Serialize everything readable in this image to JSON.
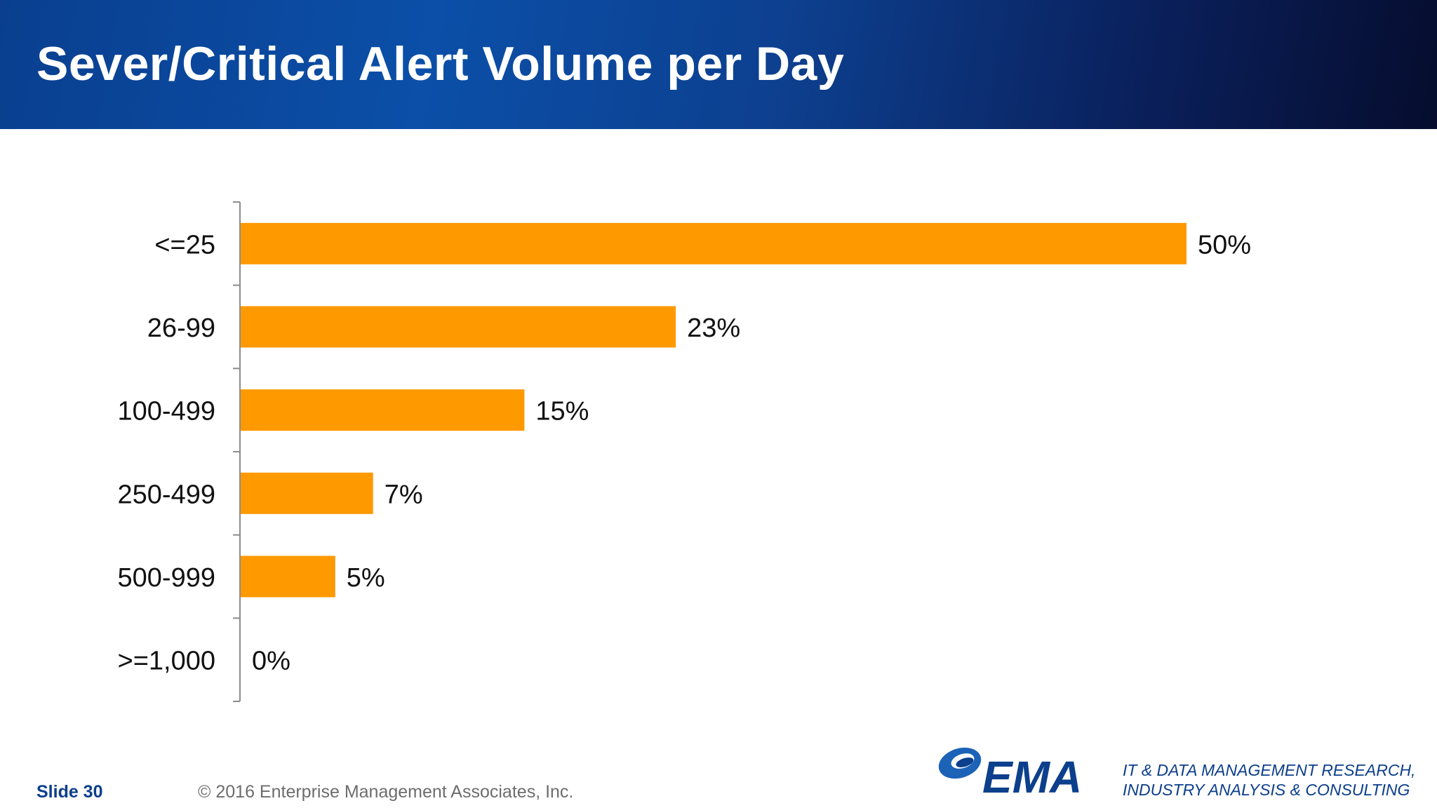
{
  "slide": {
    "title": "Sever/Critical Alert Volume per Day",
    "slide_number": "Slide 30",
    "copyright": "© 2016 Enterprise Management Associates, Inc.",
    "logo_text": "EMA",
    "tagline_line1": "IT & DATA MANAGEMENT RESEARCH,",
    "tagline_line2": "INDUSTRY ANALYSIS & CONSULTING"
  },
  "colors": {
    "bar": "#ff9900",
    "banner": "#0b4fa8",
    "brand": "#0c3f8c"
  },
  "chart_data": {
    "type": "bar",
    "orientation": "horizontal",
    "categories": [
      "<=25",
      "26-99",
      "100-499",
      "250-499",
      "500-999",
      ">=1,000"
    ],
    "values": [
      50,
      23,
      15,
      7,
      5,
      0
    ],
    "data_labels": [
      "50%",
      "23%",
      "15%",
      "7%",
      "5%",
      "0%"
    ],
    "title": "",
    "xlabel": "",
    "ylabel": "",
    "xlim": [
      0,
      50
    ],
    "grid": false,
    "legend": "none"
  }
}
